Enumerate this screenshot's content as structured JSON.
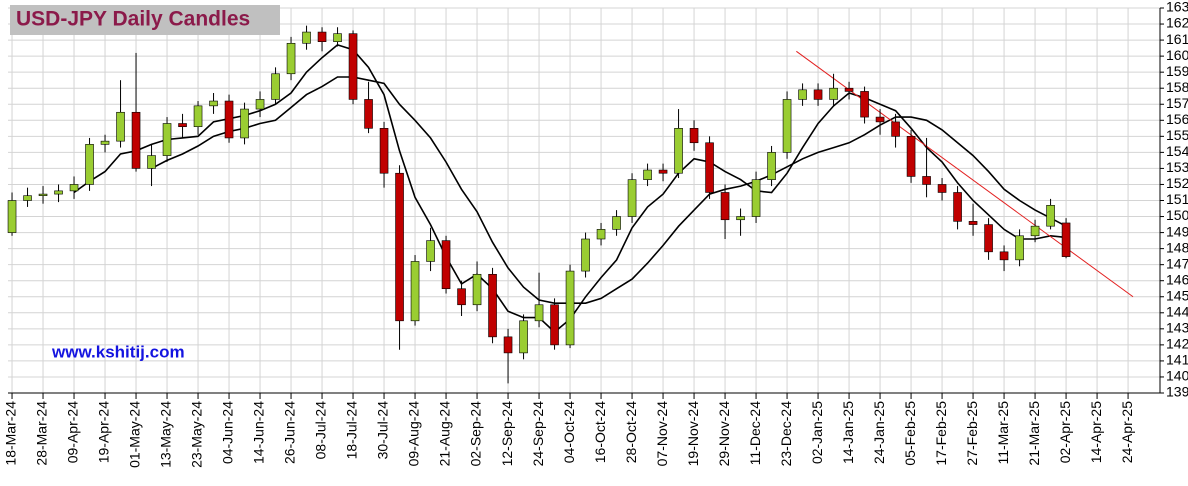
{
  "chart_data": {
    "type": "candlestick",
    "title": "USD-JPY Daily Candles",
    "annotation": "www.kshitij.com",
    "ylim": [
      139,
      163
    ],
    "yticks": [
      139,
      140,
      141,
      142,
      143,
      144,
      145,
      146,
      147,
      148,
      149,
      150,
      151,
      152,
      153,
      154,
      155,
      156,
      157,
      158,
      159,
      160,
      161,
      162,
      163
    ],
    "xlim": [
      -0.13,
      37.03
    ],
    "xticks": [
      {
        "value": 0,
        "label": "18-Mar-24"
      },
      {
        "value": 1,
        "label": "28-Mar-24"
      },
      {
        "value": 2,
        "label": "09-Apr-24"
      },
      {
        "value": 3,
        "label": "19-Apr-24"
      },
      {
        "value": 4,
        "label": "01-May-24"
      },
      {
        "value": 5,
        "label": "13-May-24"
      },
      {
        "value": 6,
        "label": "23-May-24"
      },
      {
        "value": 7,
        "label": "04-Jun-24"
      },
      {
        "value": 8,
        "label": "14-Jun-24"
      },
      {
        "value": 9,
        "label": "26-Jun-24"
      },
      {
        "value": 10,
        "label": "08-Jul-24"
      },
      {
        "value": 11,
        "label": "18-Jul-24"
      },
      {
        "value": 12,
        "label": "30-Jul-24"
      },
      {
        "value": 13,
        "label": "09-Aug-24"
      },
      {
        "value": 14,
        "label": "21-Aug-24"
      },
      {
        "value": 15,
        "label": "02-Sep-24"
      },
      {
        "value": 16,
        "label": "12-Sep-24"
      },
      {
        "value": 17,
        "label": "24-Sep-24"
      },
      {
        "value": 18,
        "label": "04-Oct-24"
      },
      {
        "value": 19,
        "label": "16-Oct-24"
      },
      {
        "value": 20,
        "label": "28-Oct-24"
      },
      {
        "value": 21,
        "label": "07-Nov-24"
      },
      {
        "value": 22,
        "label": "19-Nov-24"
      },
      {
        "value": 23,
        "label": "29-Nov-24"
      },
      {
        "value": 24,
        "label": "11-Dec-24"
      },
      {
        "value": 25,
        "label": "23-Dec-24"
      },
      {
        "value": 26,
        "label": "02-Jan-25"
      },
      {
        "value": 27,
        "label": "14-Jan-25"
      },
      {
        "value": 28,
        "label": "24-Jan-25"
      },
      {
        "value": 29,
        "label": "05-Feb-25"
      },
      {
        "value": 30,
        "label": "17-Feb-25"
      },
      {
        "value": 31,
        "label": "27-Feb-25"
      },
      {
        "value": 32,
        "label": "11-Mar-25"
      },
      {
        "value": 33,
        "label": "21-Mar-25"
      },
      {
        "value": 34,
        "label": "02-Apr-25"
      },
      {
        "value": 35,
        "label": "14-Apr-25"
      },
      {
        "value": 36,
        "label": "24-Apr-25"
      }
    ],
    "grid": true,
    "candles": {
      "up_color": "#9acd32",
      "down_color": "#c00000",
      "x": [
        0,
        0.5,
        1,
        1.5,
        2,
        2.5,
        3,
        3.5,
        4,
        4.5,
        5,
        5.5,
        6,
        6.5,
        7,
        7.5,
        8,
        8.5,
        9,
        9.5,
        10,
        10.5,
        11,
        11.5,
        12,
        12.5,
        13,
        13.5,
        14,
        14.5,
        15,
        15.5,
        16,
        16.5,
        17,
        17.5,
        18,
        18.5,
        19,
        19.5,
        20,
        20.5,
        21,
        21.5,
        22,
        22.5,
        23,
        23.5,
        24,
        24.5,
        25,
        25.5,
        26,
        26.5,
        27,
        27.5,
        28,
        28.5,
        29,
        29.5,
        30,
        30.5,
        31,
        31.5,
        32,
        32.5,
        33,
        33.5,
        34
      ],
      "open": [
        149.0,
        151.0,
        151.3,
        151.4,
        151.6,
        152.0,
        154.5,
        154.7,
        156.5,
        153.0,
        153.8,
        155.8,
        155.6,
        156.9,
        157.2,
        154.9,
        156.7,
        157.3,
        158.9,
        160.8,
        161.5,
        160.9,
        161.4,
        157.3,
        155.5,
        152.7,
        143.5,
        147.2,
        148.5,
        145.5,
        144.5,
        146.4,
        142.5,
        141.5,
        143.5,
        144.5,
        142.0,
        146.6,
        148.6,
        149.2,
        150.0,
        152.3,
        152.9,
        152.7,
        155.5,
        154.6,
        151.5,
        149.8,
        150.0,
        152.3,
        154.0,
        157.3,
        157.9,
        157.3,
        158.0,
        157.8,
        156.2,
        155.9,
        155.0,
        152.5,
        152.0,
        151.5,
        149.7,
        149.5,
        147.8,
        147.3,
        148.8,
        149.4,
        149.6
      ],
      "high": [
        151.5,
        151.8,
        151.9,
        152.0,
        152.5,
        154.9,
        155.1,
        158.5,
        160.2,
        154.5,
        156.2,
        156.4,
        157.2,
        157.7,
        157.6,
        157.1,
        157.8,
        159.3,
        161.2,
        161.9,
        161.8,
        161.8,
        161.6,
        158.4,
        155.9,
        153.2,
        147.6,
        149.3,
        148.8,
        146.0,
        147.2,
        146.8,
        143.0,
        143.9,
        146.5,
        144.9,
        147.0,
        149.0,
        149.6,
        150.4,
        152.7,
        153.3,
        153.3,
        156.7,
        156.0,
        155.0,
        152.0,
        150.5,
        152.8,
        154.4,
        157.8,
        158.3,
        158.3,
        158.9,
        158.4,
        158.1,
        156.7,
        156.4,
        155.4,
        154.9,
        152.4,
        151.9,
        150.8,
        149.9,
        148.2,
        149.2,
        149.8,
        151.1,
        149.9
      ],
      "low": [
        148.8,
        150.6,
        150.8,
        150.9,
        151.1,
        151.6,
        154.0,
        154.3,
        152.8,
        151.9,
        153.4,
        154.9,
        155.1,
        156.4,
        154.6,
        154.5,
        156.2,
        157.0,
        158.5,
        160.4,
        160.3,
        160.6,
        157.0,
        155.2,
        151.8,
        141.7,
        143.2,
        146.6,
        145.2,
        143.8,
        144.1,
        142.1,
        139.6,
        141.1,
        143.1,
        141.7,
        141.8,
        146.2,
        148.2,
        148.8,
        149.6,
        151.9,
        152.2,
        152.4,
        154.1,
        151.1,
        148.6,
        148.8,
        149.6,
        151.9,
        153.6,
        156.9,
        156.9,
        156.9,
        157.3,
        155.8,
        155.1,
        154.3,
        152.1,
        151.2,
        151.0,
        149.2,
        148.8,
        147.3,
        146.6,
        146.9,
        148.4,
        149.2,
        147.4
      ],
      "close": [
        151.0,
        151.3,
        151.4,
        151.6,
        152.0,
        154.5,
        154.7,
        156.5,
        153.0,
        153.8,
        155.8,
        155.6,
        156.9,
        157.2,
        154.9,
        156.7,
        157.3,
        158.9,
        160.8,
        161.5,
        160.9,
        161.4,
        157.3,
        155.5,
        152.7,
        143.5,
        147.2,
        148.5,
        145.5,
        144.5,
        146.4,
        142.5,
        141.5,
        143.5,
        144.5,
        142.0,
        146.6,
        148.6,
        149.2,
        150.0,
        152.3,
        152.9,
        152.7,
        155.5,
        154.6,
        151.5,
        149.8,
        150.0,
        152.3,
        154.0,
        157.3,
        157.9,
        157.3,
        158.0,
        157.8,
        156.2,
        155.9,
        155.0,
        152.5,
        152.0,
        151.5,
        149.7,
        149.5,
        147.8,
        147.3,
        148.8,
        149.4,
        150.7,
        147.5
      ]
    },
    "lines": [
      {
        "color": "#000000",
        "values": [
          null,
          null,
          null,
          null,
          151.5,
          152.2,
          152.8,
          153.9,
          154.1,
          154.5,
          154.8,
          154.9,
          155.0,
          155.9,
          156.1,
          156.3,
          156.6,
          157.0,
          157.7,
          159.0,
          159.9,
          160.7,
          160.4,
          159.3,
          157.6,
          154.1,
          151.2,
          149.5,
          147.5,
          145.8,
          146.4,
          145.5,
          144.1,
          143.7,
          143.7,
          142.8,
          143.6,
          145.0,
          146.2,
          147.3,
          149.3,
          150.6,
          151.4,
          152.7,
          153.6,
          153.4,
          152.8,
          152.3,
          151.6,
          151.5,
          152.7,
          154.3,
          155.8,
          156.9,
          157.7,
          157.4,
          157.0,
          156.6,
          155.5,
          154.3,
          153.4,
          152.1,
          151.0,
          150.1,
          149.2,
          148.6,
          148.6,
          148.8,
          148.7
        ]
      },
      {
        "color": "#000000",
        "values": [
          null,
          null,
          null,
          null,
          null,
          null,
          null,
          null,
          null,
          153.0,
          153.5,
          153.9,
          154.4,
          155.0,
          155.3,
          155.5,
          155.8,
          156.0,
          156.8,
          157.6,
          158.1,
          158.7,
          158.7,
          158.5,
          158.3,
          157.0,
          156.0,
          154.9,
          153.4,
          151.7,
          150.3,
          148.4,
          146.8,
          145.6,
          144.8,
          144.6,
          144.6,
          144.6,
          144.9,
          145.5,
          146.1,
          147.1,
          148.2,
          149.4,
          150.4,
          151.4,
          151.7,
          151.9,
          152.2,
          152.6,
          153.1,
          153.6,
          154.0,
          154.3,
          154.6,
          155.1,
          155.7,
          156.2,
          156.2,
          156.0,
          155.4,
          154.6,
          153.8,
          152.8,
          151.7,
          151.0,
          150.4,
          149.9,
          149.4
        ]
      }
    ],
    "trendline": {
      "color": "#e32020",
      "x": [
        25.3,
        36.16
      ],
      "y": [
        160.3,
        145.0
      ]
    }
  }
}
